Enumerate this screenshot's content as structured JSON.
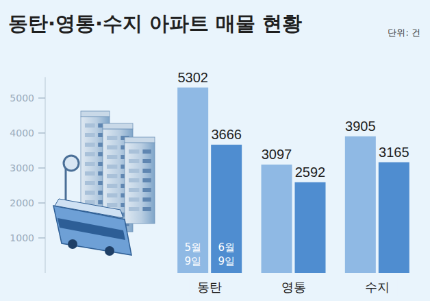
{
  "chart_data": {
    "type": "bar",
    "title": "동탄·영통·수지 아파트 매물 현황",
    "subtitle": "단위: 건",
    "categories": [
      "동탄",
      "영통",
      "수지"
    ],
    "series": [
      {
        "name": "5월 9일",
        "color": "#8fb9e4",
        "values": [
          5302,
          3097,
          3905
        ]
      },
      {
        "name": "6월 9일",
        "color": "#4f8dd0",
        "values": [
          3666,
          2592,
          3165
        ]
      }
    ],
    "ylim": [
      0,
      5600
    ],
    "yticks": [
      1000,
      2000,
      3000,
      4000,
      5000
    ],
    "grid": false,
    "data_labels": true
  }
}
